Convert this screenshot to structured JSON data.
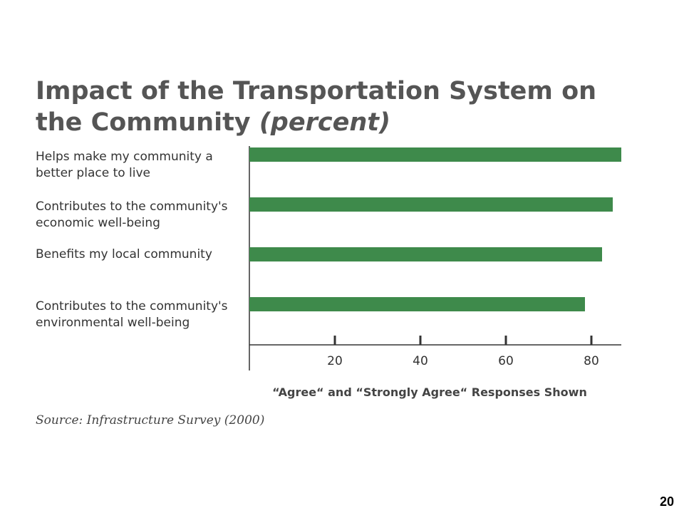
{
  "chart_data": {
    "type": "barh",
    "title": "Impact of the Transportation System on the Community",
    "title_suffix": "(percent)",
    "categories": [
      "Helps make my community a better place to live",
      "Contributes to the community's economic well-being",
      "Benefits my local community",
      "Contributes to the community's environmental well-being"
    ],
    "values": [
      87,
      85,
      82.5,
      78.5
    ],
    "color": "#3e8a4b",
    "xlim": [
      0,
      87
    ],
    "xticks": [
      20,
      40,
      60,
      80
    ],
    "xlabel": "“Agree“ and “Strongly Agree“ Responses Shown",
    "source": "Source: Infrastructure Survey (2000)"
  },
  "page_number": "20"
}
